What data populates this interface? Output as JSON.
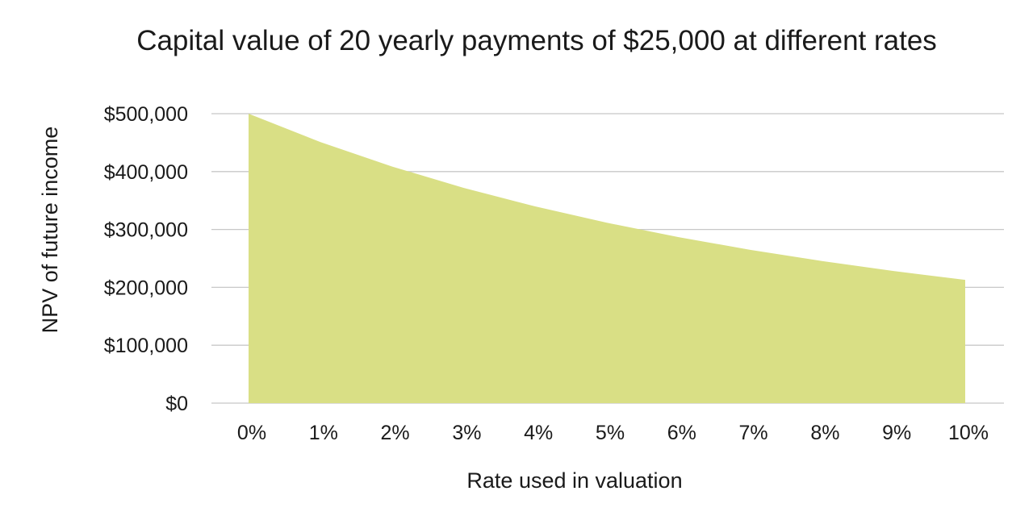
{
  "chart_data": {
    "type": "area",
    "title": "Capital value of 20 yearly payments of $25,000 at different rates",
    "xlabel": "Rate used in valuation",
    "ylabel": "NPV of future income",
    "categories": [
      "0%",
      "1%",
      "2%",
      "3%",
      "4%",
      "5%",
      "6%",
      "7%",
      "8%",
      "9%",
      "10%"
    ],
    "x": [
      0,
      1,
      2,
      3,
      4,
      5,
      6,
      7,
      8,
      9,
      10
    ],
    "values": [
      500000,
      451141,
      408786,
      371937,
      339758,
      311555,
      286748,
      264851,
      245454,
      228214,
      212839
    ],
    "ylim": [
      0,
      500000
    ],
    "yticks": [
      0,
      100000,
      200000,
      300000,
      400000,
      500000
    ],
    "ytick_labels": [
      "$0",
      "$100,000",
      "$200,000",
      "$300,000",
      "$400,000",
      "$500,000"
    ],
    "grid": true,
    "legend": "none",
    "fill_color": "#d9df85"
  }
}
